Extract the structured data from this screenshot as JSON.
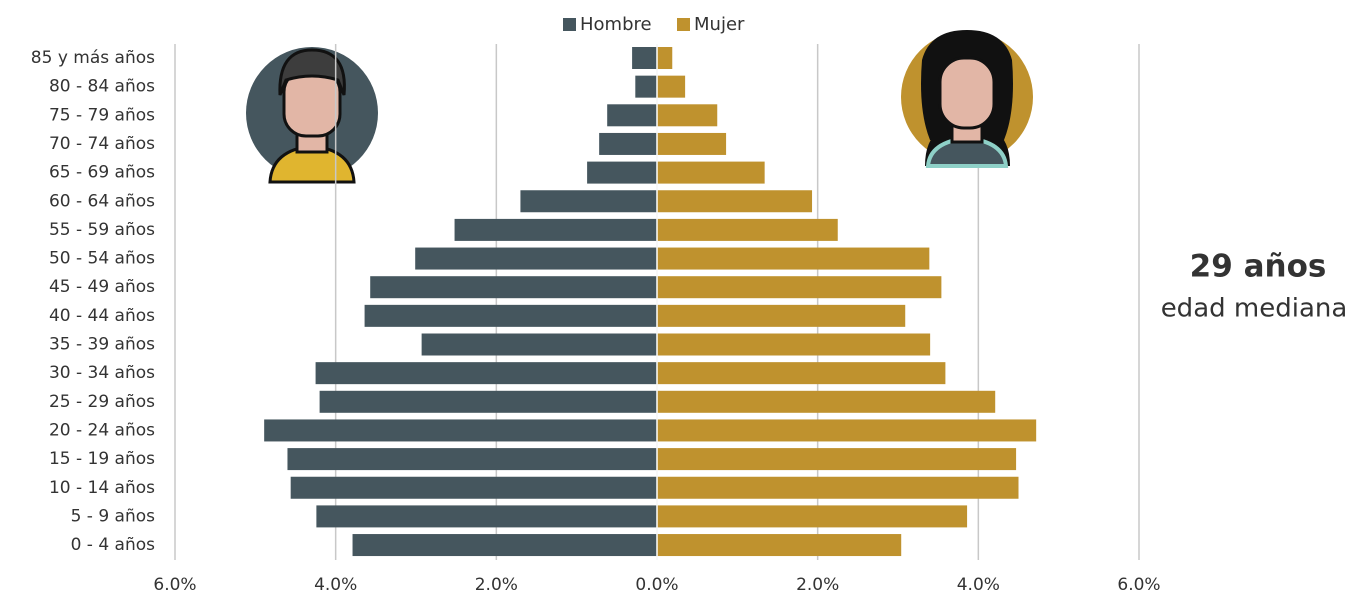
{
  "chart_data": {
    "type": "pyramid",
    "categories": [
      "85 y más años",
      "80 - 84 años",
      "75 - 79 años",
      "70 - 74 años",
      "65 - 69 años",
      "60 - 64 años",
      "55 - 59 años",
      "50 - 54 años",
      "45 - 49 años",
      "40 - 44 años",
      "35 - 39 años",
      "30 - 34 años",
      "25 - 29 años",
      "20 - 24 años",
      "15 - 19 años",
      "10 - 14 años",
      "5 - 9 años",
      "0 - 4 años"
    ],
    "series": [
      {
        "name": "Hombre",
        "color": "#45565e",
        "values": [
          0.31,
          0.27,
          0.62,
          0.72,
          0.87,
          1.7,
          2.52,
          3.01,
          3.57,
          3.64,
          2.93,
          4.25,
          4.2,
          4.89,
          4.6,
          4.56,
          4.24,
          3.79
        ]
      },
      {
        "name": "Mujer",
        "color": "#bf922e",
        "values": [
          0.19,
          0.35,
          0.75,
          0.86,
          1.34,
          1.93,
          2.25,
          3.39,
          3.54,
          3.09,
          3.4,
          3.59,
          4.21,
          4.72,
          4.47,
          4.5,
          3.86,
          3.04
        ]
      }
    ],
    "xlim": [
      0,
      6
    ],
    "xticks": [
      {
        "value": 0,
        "label": "0.0%"
      },
      {
        "value": 2,
        "label": "2.0%"
      },
      {
        "value": 4,
        "label": "4.0%"
      },
      {
        "value": 6,
        "label": "6.0%"
      }
    ],
    "grid": true,
    "legend": "top",
    "annotations": [
      {
        "text": "29 años",
        "color": "#bf922e"
      },
      {
        "text": "edad mediana",
        "color": "#666666"
      }
    ]
  }
}
